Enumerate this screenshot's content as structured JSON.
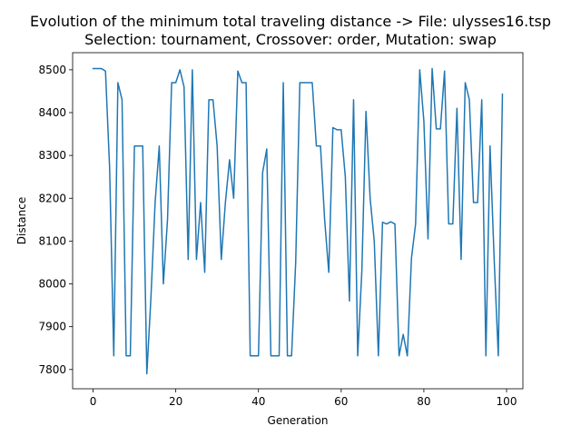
{
  "chart_data": {
    "type": "line",
    "title": "Evolution of the minimum total traveling distance -> File: ulysses16.tsp",
    "subtitle": "Selection: tournament, Crossover: order, Mutation: swap",
    "xlabel": "Generation",
    "ylabel": "Distance",
    "xlim": [
      -4.95,
      103.95
    ],
    "ylim": [
      7755,
      8540
    ],
    "xticks": [
      0,
      20,
      40,
      60,
      80,
      100
    ],
    "yticks": [
      7800,
      7900,
      8000,
      8100,
      8200,
      8300,
      8400,
      8500
    ],
    "grid": false,
    "series": [
      {
        "color": "#1f77b4",
        "x": [
          0,
          1,
          2,
          3,
          4,
          5,
          6,
          7,
          8,
          9,
          10,
          11,
          12,
          13,
          14,
          15,
          16,
          17,
          18,
          19,
          20,
          21,
          22,
          23,
          24,
          25,
          26,
          27,
          28,
          29,
          30,
          31,
          32,
          33,
          34,
          35,
          36,
          37,
          38,
          39,
          40,
          41,
          42,
          43,
          44,
          45,
          46,
          47,
          48,
          49,
          50,
          51,
          52,
          53,
          54,
          55,
          56,
          57,
          58,
          59,
          60,
          61,
          62,
          63,
          64,
          65,
          66,
          67,
          68,
          69,
          70,
          71,
          72,
          73,
          74,
          75,
          76,
          77,
          78,
          79,
          80,
          81,
          82,
          83,
          84,
          85,
          86,
          87,
          88,
          89,
          90,
          91,
          92,
          93,
          94,
          95,
          96,
          97,
          98,
          99
        ],
        "values": [
          8503,
          8503,
          8503,
          8497,
          8270,
          7832,
          8470,
          8430,
          7832,
          7832,
          8322,
          8322,
          8322,
          7790,
          7970,
          8190,
          8322,
          8000,
          8150,
          8470,
          8470,
          8500,
          8460,
          8057,
          8500,
          8057,
          8190,
          8027,
          8430,
          8430,
          8322,
          8057,
          8190,
          8290,
          8200,
          8497,
          8470,
          8470,
          7832,
          7832,
          7832,
          8260,
          8315,
          7832,
          7832,
          7832,
          8470,
          7832,
          7832,
          8050,
          8470,
          8470,
          8470,
          8470,
          8322,
          8322,
          8150,
          8027,
          8365,
          8360,
          8360,
          8250,
          7960,
          8430,
          7832,
          8030,
          8403,
          8200,
          8100,
          7832,
          8144,
          8140,
          8145,
          8140,
          7832,
          7882,
          7832,
          8060,
          8140,
          8500,
          8380,
          8105,
          8503,
          8362,
          8362,
          8497,
          8140,
          8140,
          8410,
          8057,
          8470,
          8430,
          8190,
          8190,
          8430,
          7832,
          8322,
          8057,
          7832,
          8443
        ]
      }
    ]
  }
}
